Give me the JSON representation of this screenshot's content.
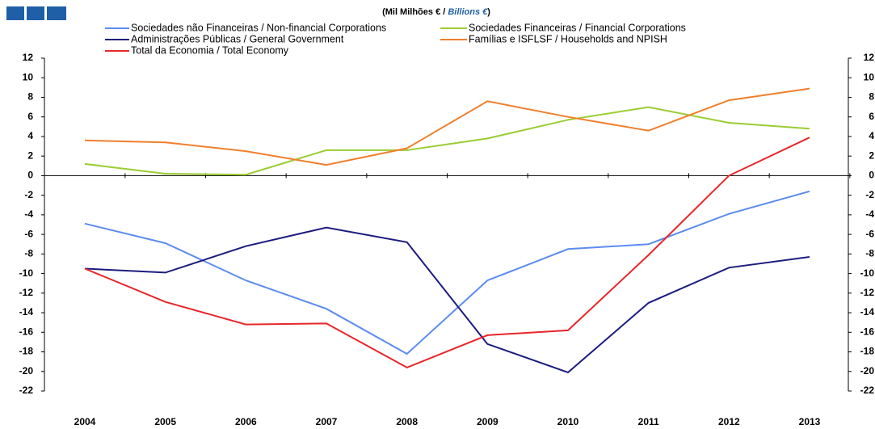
{
  "chart_data": {
    "type": "line",
    "subtitle": [
      "(Mil Milhões € / ",
      "Billions €",
      ")"
    ],
    "categories": [
      "2004",
      "2005",
      "2006",
      "2007",
      "2008",
      "2009",
      "2010",
      "2011",
      "2012",
      "2013"
    ],
    "series": [
      {
        "name": "Sociedades não Financeiras / Non-financial Corporations",
        "color": "#5b8cf0",
        "values": [
          -4.9,
          -6.9,
          -10.7,
          -13.6,
          -18.2,
          -10.7,
          -7.5,
          -7.0,
          -3.9,
          -1.6
        ]
      },
      {
        "name": "Sociedades Financeiras / Financial Corporations",
        "color": "#9acd32",
        "values": [
          1.2,
          0.2,
          0.1,
          2.6,
          2.6,
          3.8,
          5.7,
          7.0,
          5.4,
          4.8
        ]
      },
      {
        "name": "Administrações Públicas / General Government",
        "color": "#1c1c7e",
        "values": [
          -9.5,
          -9.9,
          -7.2,
          -5.3,
          -6.8,
          -17.2,
          -20.1,
          -13.0,
          -9.4,
          -8.3
        ]
      },
      {
        "name": "Famílias e ISFLSF / Households and NPISH",
        "color": "#f07f2c",
        "values": [
          3.6,
          3.4,
          2.5,
          1.1,
          2.8,
          7.6,
          6.0,
          4.6,
          7.7,
          8.9
        ]
      },
      {
        "name": "Total da Economia / Total Economy",
        "color": "#e8262b",
        "values": [
          -9.5,
          -12.9,
          -15.2,
          -15.1,
          -19.6,
          -16.3,
          -15.8,
          -8.1,
          0.0,
          3.9
        ]
      }
    ],
    "ylim": [
      -22,
      12
    ],
    "yticks": [
      -22,
      -20,
      -18,
      -16,
      -14,
      -12,
      -10,
      -8,
      -6,
      -4,
      -2,
      0,
      2,
      4,
      6,
      8,
      10,
      12
    ],
    "y2lim": [
      -22,
      12
    ],
    "y2ticks": [
      -22,
      -20,
      -18,
      -16,
      -14,
      -12,
      -10,
      -8,
      -6,
      -4,
      -2,
      0,
      2,
      4,
      6,
      8,
      10,
      12
    ]
  }
}
